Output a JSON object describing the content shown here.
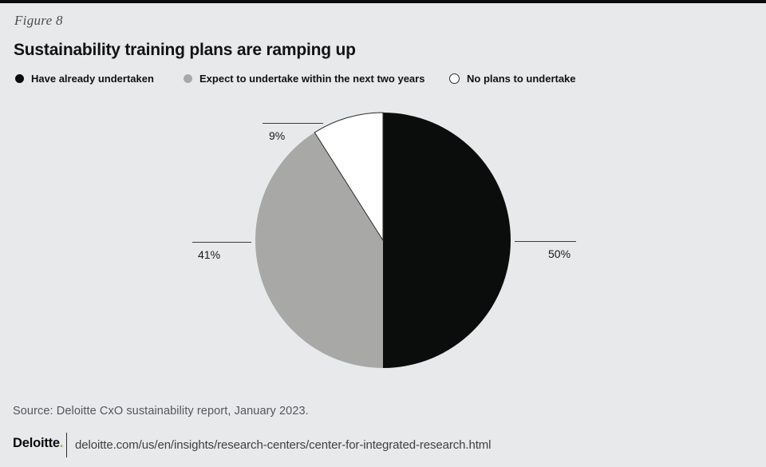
{
  "page": {
    "figure_label": "Figure 8",
    "title": "Sustainability training plans are ramping up"
  },
  "legend": {
    "items": [
      {
        "label": "Have already undertaken"
      },
      {
        "label": "Expect to undertake within the next two years"
      },
      {
        "label": "No plans to undertake"
      }
    ]
  },
  "chart_data": {
    "type": "pie",
    "title": "Sustainability training plans are ramping up",
    "figure_number": "Figure 8",
    "start_angle_deg": 0,
    "direction": "clockwise",
    "legend_position": "top",
    "slices": [
      {
        "label": "Have already undertaken",
        "value": 50,
        "display": "50%",
        "color": "#0b0c0c"
      },
      {
        "label": "Expect to undertake within the next two years",
        "value": 41,
        "display": "41%",
        "color": "#a8a8a7"
      },
      {
        "label": "No plans to undertake",
        "value": 9,
        "display": "9%",
        "color": "#ffffff",
        "outline": "#2b2b2b"
      }
    ]
  },
  "source": "Source: Deloitte CxO sustainability report, January 2023.",
  "footer": {
    "brand": "Deloitte",
    "brand_dot": ".",
    "url": "deloitte.com/us/en/insights/research-centers/center-for-integrated-research.html"
  },
  "colors": {
    "background": "#e8e9eb",
    "top_bar": "#0b0b0b",
    "accent_green": "#86bc25",
    "callout_line": "#3b3b3b",
    "source_text": "#54565a"
  }
}
